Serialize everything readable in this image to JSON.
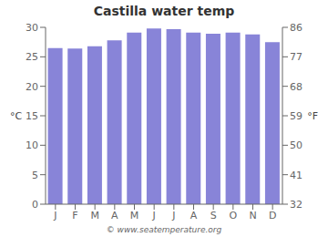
{
  "chart_data": {
    "type": "bar",
    "title": "Castilla water temp",
    "categories": [
      "J",
      "F",
      "M",
      "A",
      "M",
      "J",
      "J",
      "A",
      "S",
      "O",
      "N",
      "D"
    ],
    "values": [
      26.5,
      26.4,
      26.8,
      27.8,
      29.1,
      29.8,
      29.7,
      29.1,
      28.9,
      29.1,
      28.8,
      27.5
    ],
    "ylabel": "°C",
    "y2label": "°F",
    "ylim": [
      0,
      30
    ],
    "yticks": [
      0,
      5,
      10,
      15,
      20,
      25,
      30
    ],
    "y2lim": [
      32,
      86
    ],
    "y2ticks": [
      32,
      41,
      50,
      59,
      68,
      77,
      86
    ],
    "grid": false,
    "annotation": "© www.seatemperature.org"
  }
}
